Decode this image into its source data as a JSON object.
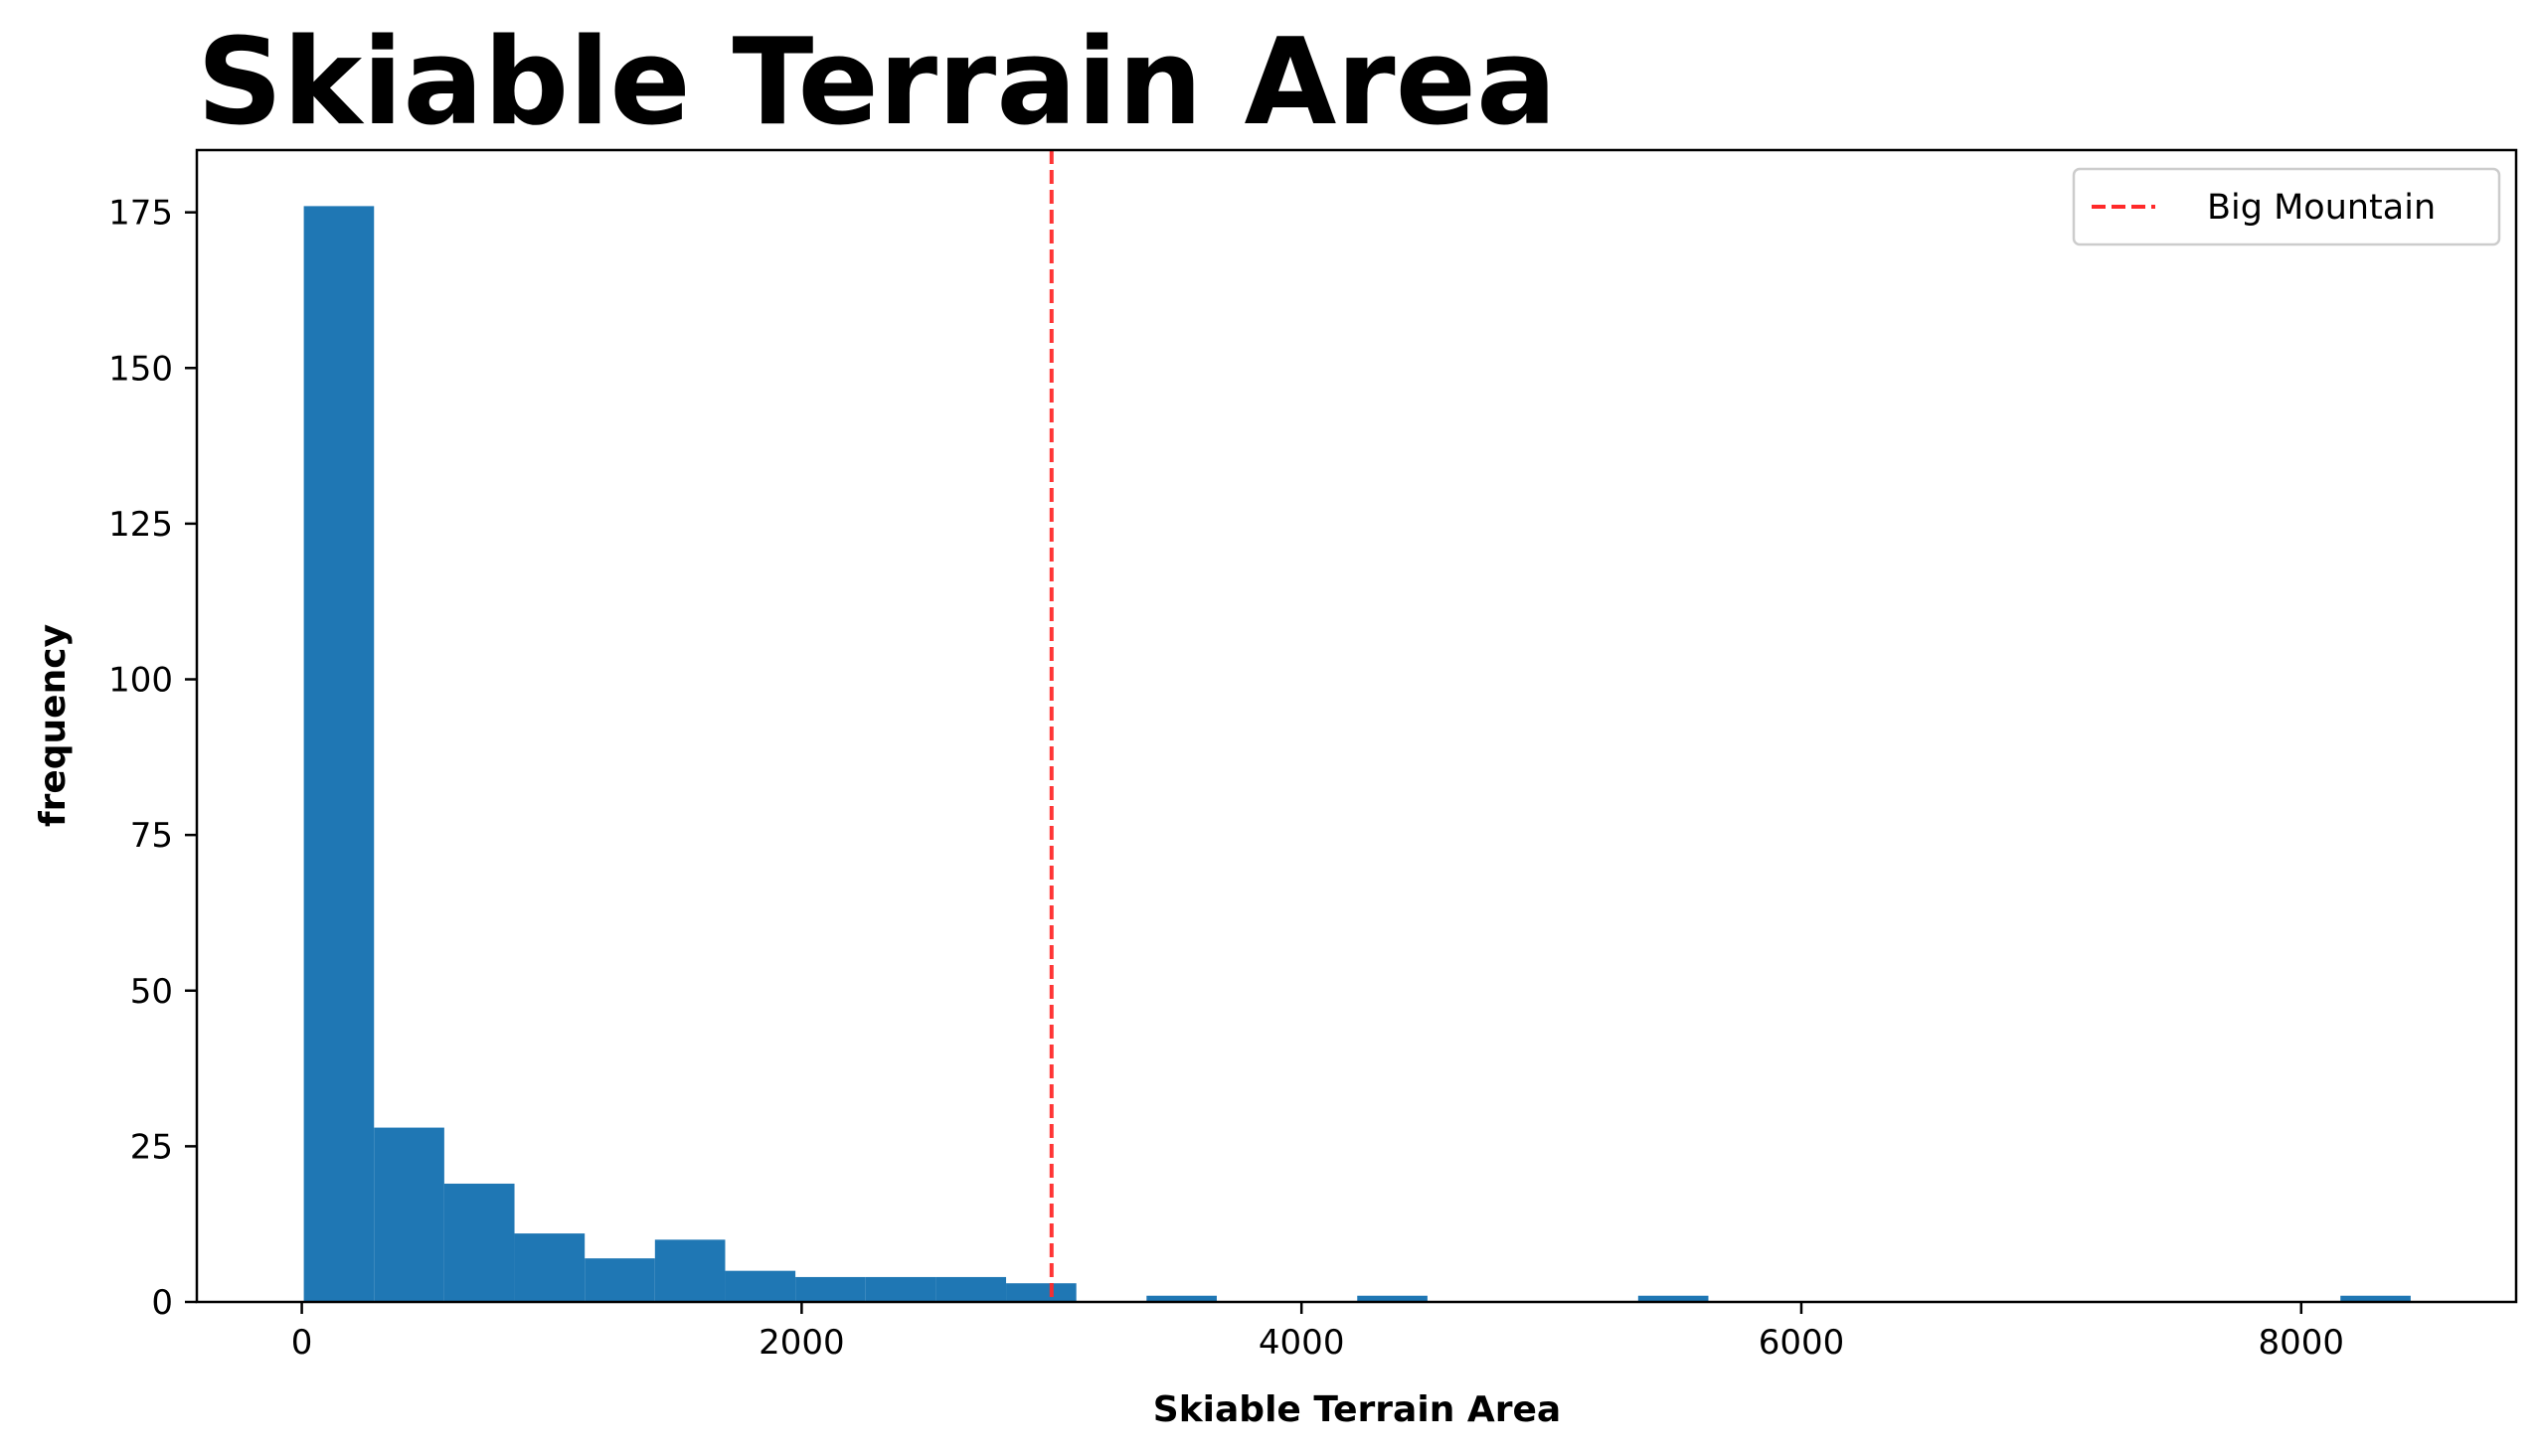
{
  "chart_data": {
    "type": "bar",
    "title": "Skiable Terrain Area",
    "xlabel": "Skiable Terrain Area",
    "ylabel": "frequency",
    "xlim": [
      -420,
      8860
    ],
    "ylim": [
      0,
      185
    ],
    "xticks": [
      0,
      2000,
      4000,
      6000,
      8000
    ],
    "yticks": [
      0,
      25,
      50,
      75,
      100,
      125,
      150,
      175
    ],
    "grid": false,
    "bar_color": "#1f77b4",
    "bins": [
      {
        "x0": 8,
        "x1": 289,
        "count": 176
      },
      {
        "x0": 289,
        "x1": 570,
        "count": 28
      },
      {
        "x0": 570,
        "x1": 851,
        "count": 19
      },
      {
        "x0": 851,
        "x1": 1132,
        "count": 11
      },
      {
        "x0": 1132,
        "x1": 1413,
        "count": 7
      },
      {
        "x0": 1413,
        "x1": 1694,
        "count": 10
      },
      {
        "x0": 1694,
        "x1": 1975,
        "count": 5
      },
      {
        "x0": 1975,
        "x1": 2256,
        "count": 4
      },
      {
        "x0": 2256,
        "x1": 2537,
        "count": 4
      },
      {
        "x0": 2537,
        "x1": 2818,
        "count": 4
      },
      {
        "x0": 2818,
        "x1": 3099,
        "count": 3
      },
      {
        "x0": 3380,
        "x1": 3661,
        "count": 1
      },
      {
        "x0": 4223,
        "x1": 4504,
        "count": 1
      },
      {
        "x0": 5347,
        "x1": 5628,
        "count": 1
      },
      {
        "x0": 8157,
        "x1": 8438,
        "count": 1
      }
    ],
    "reference_line": {
      "x": 3000,
      "label": "Big Mountain",
      "color": "#ff2a2a",
      "style": "dashed"
    },
    "legend": {
      "placement": "top-right",
      "entries": [
        "Big Mountain"
      ]
    }
  }
}
